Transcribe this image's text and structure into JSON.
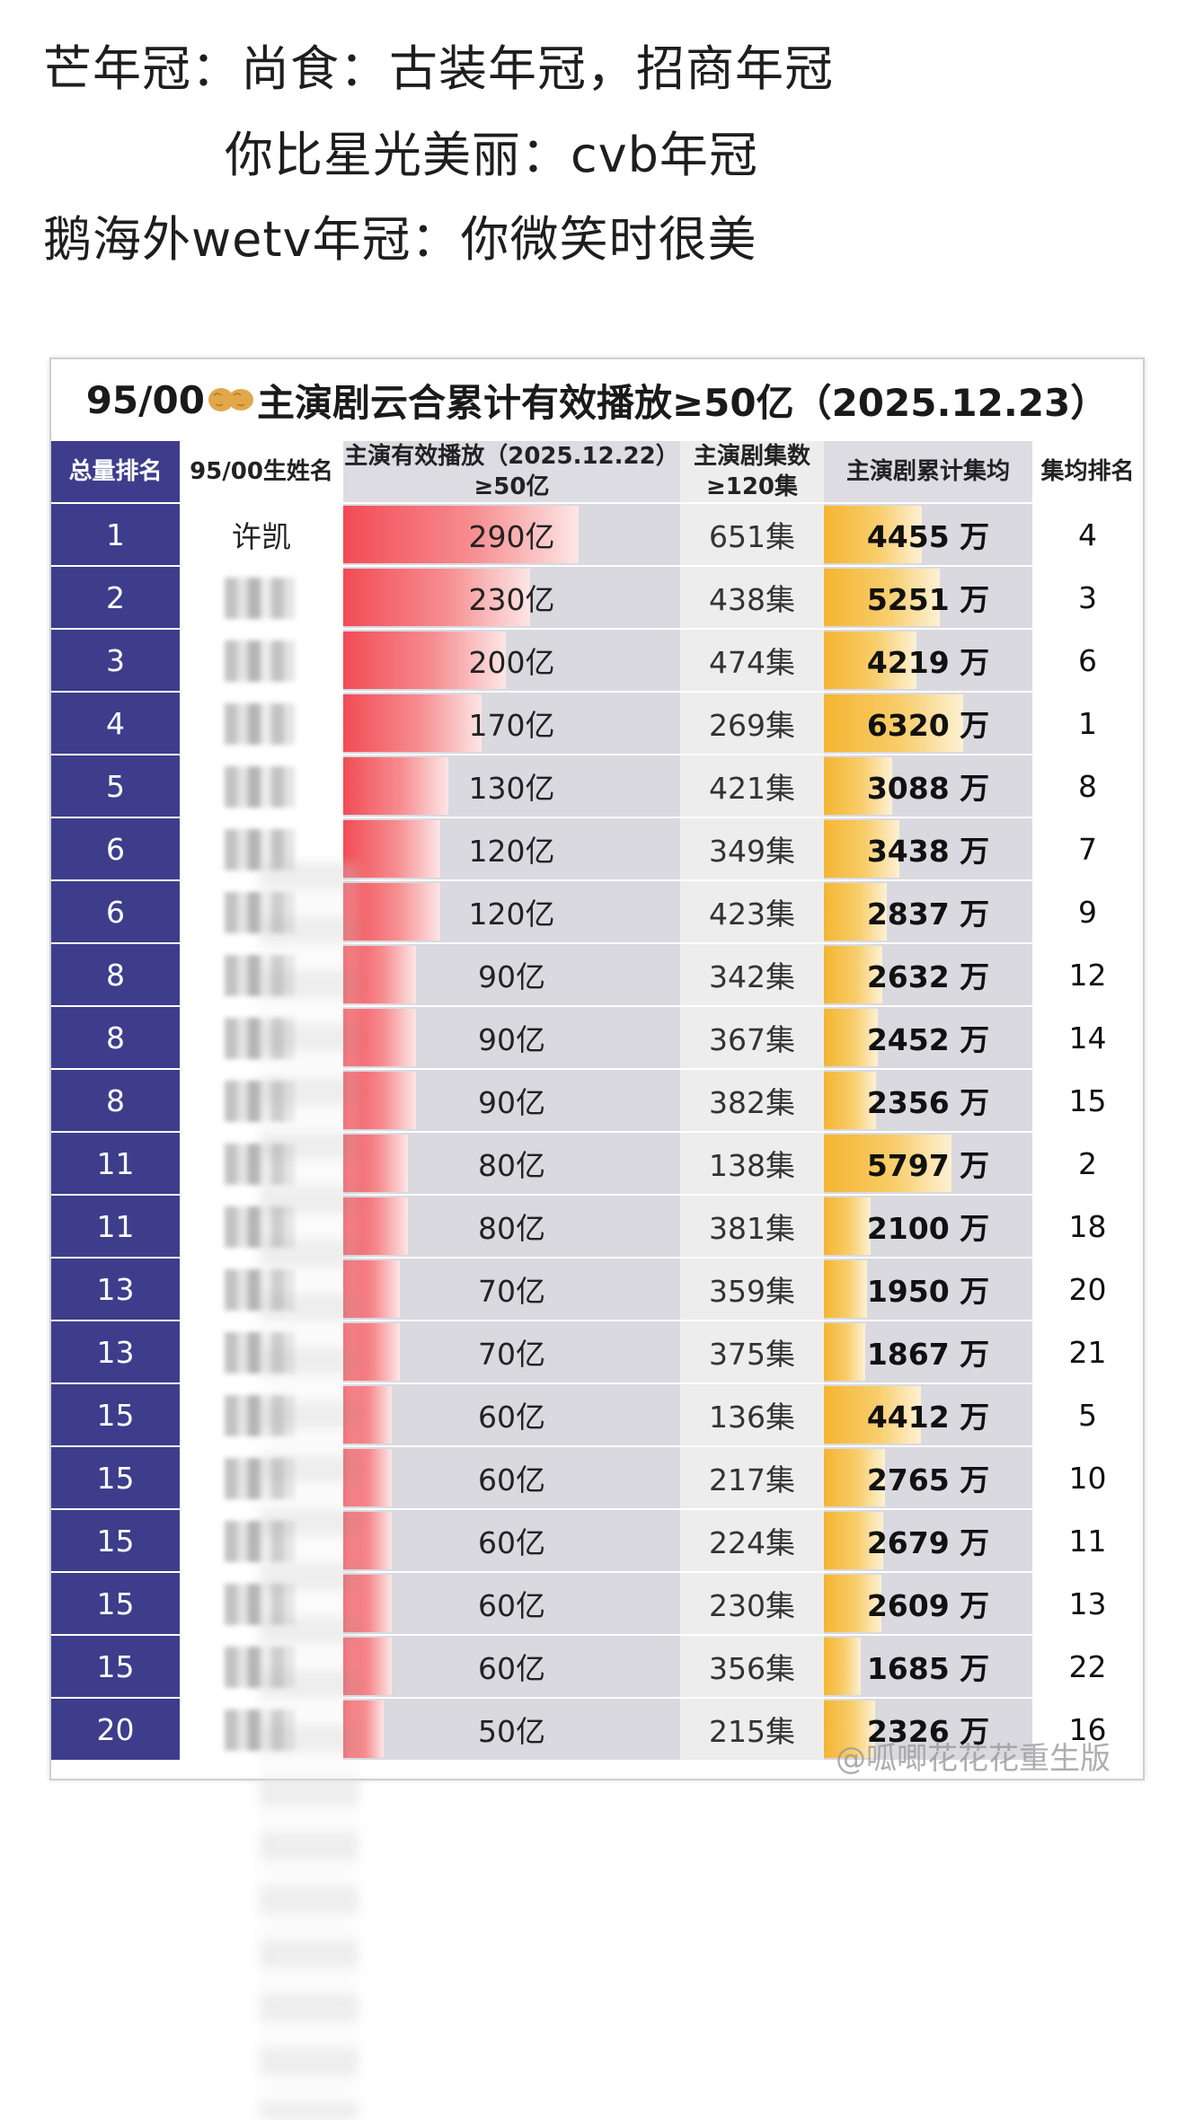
{
  "post": {
    "line1": "芒年冠：尚食：古装年冠，招商年冠",
    "line2": "你比星光美丽：cvb年冠",
    "line3": "鹅海外wetv年冠：你微笑时很美"
  },
  "table": {
    "title_left": "95/00",
    "title_right": "主演剧云合累计有效播放≥50亿（2025.12.23）",
    "peanut_icon": "peanut-icon",
    "headers": {
      "rank": "总量排名",
      "name": "95/00生姓名",
      "play_line1": "主演有效播放（2025.12.22）",
      "play_line2": "≥50亿",
      "eps_line1": "主演剧集数",
      "eps_line2": "≥120集",
      "avg": "主演剧累计集均",
      "avg_rank": "集均排名"
    },
    "colors": {
      "rank_column": "#3d3d8c",
      "play_bar": "#f24b55",
      "avg_bar": "#f4b531"
    },
    "rows": [
      {
        "rank": "1",
        "name": "许凯",
        "play": "290亿",
        "play_value": 290,
        "eps": "651集",
        "avg": "4455 万",
        "avg_value": 4455,
        "avg_rank": "4"
      },
      {
        "rank": "2",
        "name": "",
        "play": "230亿",
        "play_value": 230,
        "eps": "438集",
        "avg": "5251 万",
        "avg_value": 5251,
        "avg_rank": "3"
      },
      {
        "rank": "3",
        "name": "",
        "play": "200亿",
        "play_value": 200,
        "eps": "474集",
        "avg": "4219 万",
        "avg_value": 4219,
        "avg_rank": "6"
      },
      {
        "rank": "4",
        "name": "",
        "play": "170亿",
        "play_value": 170,
        "eps": "269集",
        "avg": "6320 万",
        "avg_value": 6320,
        "avg_rank": "1"
      },
      {
        "rank": "5",
        "name": "",
        "play": "130亿",
        "play_value": 130,
        "eps": "421集",
        "avg": "3088 万",
        "avg_value": 3088,
        "avg_rank": "8"
      },
      {
        "rank": "6",
        "name": "",
        "play": "120亿",
        "play_value": 120,
        "eps": "349集",
        "avg": "3438 万",
        "avg_value": 3438,
        "avg_rank": "7"
      },
      {
        "rank": "6",
        "name": "",
        "play": "120亿",
        "play_value": 120,
        "eps": "423集",
        "avg": "2837 万",
        "avg_value": 2837,
        "avg_rank": "9"
      },
      {
        "rank": "8",
        "name": "",
        "play": "90亿",
        "play_value": 90,
        "eps": "342集",
        "avg": "2632 万",
        "avg_value": 2632,
        "avg_rank": "12"
      },
      {
        "rank": "8",
        "name": "",
        "play": "90亿",
        "play_value": 90,
        "eps": "367集",
        "avg": "2452 万",
        "avg_value": 2452,
        "avg_rank": "14"
      },
      {
        "rank": "8",
        "name": "",
        "play": "90亿",
        "play_value": 90,
        "eps": "382集",
        "avg": "2356 万",
        "avg_value": 2356,
        "avg_rank": "15"
      },
      {
        "rank": "11",
        "name": "",
        "play": "80亿",
        "play_value": 80,
        "eps": "138集",
        "avg": "5797 万",
        "avg_value": 5797,
        "avg_rank": "2"
      },
      {
        "rank": "11",
        "name": "",
        "play": "80亿",
        "play_value": 80,
        "eps": "381集",
        "avg": "2100 万",
        "avg_value": 2100,
        "avg_rank": "18"
      },
      {
        "rank": "13",
        "name": "",
        "play": "70亿",
        "play_value": 70,
        "eps": "359集",
        "avg": "1950 万",
        "avg_value": 1950,
        "avg_rank": "20"
      },
      {
        "rank": "13",
        "name": "",
        "play": "70亿",
        "play_value": 70,
        "eps": "375集",
        "avg": "1867 万",
        "avg_value": 1867,
        "avg_rank": "21"
      },
      {
        "rank": "15",
        "name": "",
        "play": "60亿",
        "play_value": 60,
        "eps": "136集",
        "avg": "4412 万",
        "avg_value": 4412,
        "avg_rank": "5"
      },
      {
        "rank": "15",
        "name": "",
        "play": "60亿",
        "play_value": 60,
        "eps": "217集",
        "avg": "2765 万",
        "avg_value": 2765,
        "avg_rank": "10"
      },
      {
        "rank": "15",
        "name": "",
        "play": "60亿",
        "play_value": 60,
        "eps": "224集",
        "avg": "2679 万",
        "avg_value": 2679,
        "avg_rank": "11"
      },
      {
        "rank": "15",
        "name": "",
        "play": "60亿",
        "play_value": 60,
        "eps": "230集",
        "avg": "2609 万",
        "avg_value": 2609,
        "avg_rank": "13"
      },
      {
        "rank": "15",
        "name": "",
        "play": "60亿",
        "play_value": 60,
        "eps": "356集",
        "avg": "1685 万",
        "avg_value": 1685,
        "avg_rank": "22"
      },
      {
        "rank": "20",
        "name": "",
        "play": "50亿",
        "play_value": 50,
        "eps": "215集",
        "avg": "2326 万",
        "avg_value": 2326,
        "avg_rank": "16"
      }
    ]
  },
  "watermark": "@呱唧花花花重生版"
}
